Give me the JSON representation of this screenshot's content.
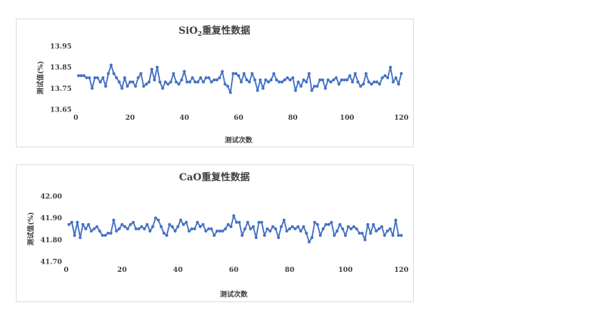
{
  "chart_data": [
    {
      "type": "line",
      "title_main": "SiO",
      "title_sub": "2",
      "title_rest": "重复性数据",
      "xlabel": "测试次数",
      "ylabel": "测试值(%)",
      "xlim": [
        0,
        120
      ],
      "ylim": [
        13.65,
        13.95
      ],
      "xticks": [
        "0",
        "20",
        "40",
        "60",
        "80",
        "100",
        "120"
      ],
      "yticks": [
        "13.65",
        "13.75",
        "13.85",
        "13.95"
      ],
      "color": "#4472c4",
      "x": [
        1,
        2,
        3,
        4,
        5,
        6,
        7,
        8,
        9,
        10,
        11,
        12,
        13,
        14,
        15,
        16,
        17,
        18,
        19,
        20,
        21,
        22,
        23,
        24,
        25,
        26,
        27,
        28,
        29,
        30,
        31,
        32,
        33,
        34,
        35,
        36,
        37,
        38,
        39,
        40,
        41,
        42,
        43,
        44,
        45,
        46,
        47,
        48,
        49,
        50,
        51,
        52,
        53,
        54,
        55,
        56,
        57,
        58,
        59,
        60,
        61,
        62,
        63,
        64,
        65,
        66,
        67,
        68,
        69,
        70,
        71,
        72,
        73,
        74,
        75,
        76,
        77,
        78,
        79,
        80,
        81,
        82,
        83,
        84,
        85,
        86,
        87,
        88,
        89,
        90,
        91,
        92,
        93,
        94,
        95,
        96,
        97,
        98,
        99,
        100,
        101,
        102,
        103,
        104,
        105,
        106,
        107,
        108,
        109,
        110,
        111,
        112,
        113,
        114,
        115,
        116,
        117,
        118,
        119,
        120
      ],
      "values": [
        13.81,
        13.81,
        13.81,
        13.8,
        13.8,
        13.75,
        13.8,
        13.8,
        13.78,
        13.8,
        13.76,
        13.82,
        13.86,
        13.82,
        13.8,
        13.78,
        13.75,
        13.8,
        13.76,
        13.78,
        13.78,
        13.76,
        13.8,
        13.82,
        13.76,
        13.77,
        13.78,
        13.84,
        13.79,
        13.85,
        13.78,
        13.75,
        13.78,
        13.77,
        13.78,
        13.82,
        13.78,
        13.77,
        13.79,
        13.83,
        13.78,
        13.78,
        13.8,
        13.78,
        13.78,
        13.8,
        13.78,
        13.8,
        13.8,
        13.78,
        13.79,
        13.79,
        13.8,
        13.83,
        13.77,
        13.76,
        13.73,
        13.82,
        13.82,
        13.81,
        13.78,
        13.82,
        13.79,
        13.78,
        13.82,
        13.79,
        13.74,
        13.79,
        13.75,
        13.79,
        13.78,
        13.79,
        13.82,
        13.79,
        13.78,
        13.78,
        13.79,
        13.8,
        13.79,
        13.8,
        13.74,
        13.78,
        13.76,
        13.79,
        13.78,
        13.82,
        13.74,
        13.76,
        13.76,
        13.79,
        13.79,
        13.75,
        13.79,
        13.78,
        13.79,
        13.8,
        13.77,
        13.79,
        13.79,
        13.79,
        13.81,
        13.78,
        13.82,
        13.78,
        13.76,
        13.77,
        13.82,
        13.78,
        13.77,
        13.78,
        13.78,
        13.77,
        13.8,
        13.81,
        13.8,
        13.85,
        13.78,
        13.8,
        13.77,
        13.82
      ]
    },
    {
      "type": "line",
      "title_main": "CaO重复性数据",
      "title_sub": "",
      "title_rest": "",
      "xlabel": "测试次数",
      "ylabel": "测试值(%)",
      "xlim": [
        0,
        120
      ],
      "ylim": [
        41.7,
        42.0
      ],
      "xticks": [
        "0",
        "20",
        "40",
        "60",
        "80",
        "100",
        "120"
      ],
      "yticks": [
        "41.70",
        "41.80",
        "41.90",
        "42.00"
      ],
      "color": "#4472c4",
      "x": [
        1,
        2,
        3,
        4,
        5,
        6,
        7,
        8,
        9,
        10,
        11,
        12,
        13,
        14,
        15,
        16,
        17,
        18,
        19,
        20,
        21,
        22,
        23,
        24,
        25,
        26,
        27,
        28,
        29,
        30,
        31,
        32,
        33,
        34,
        35,
        36,
        37,
        38,
        39,
        40,
        41,
        42,
        43,
        44,
        45,
        46,
        47,
        48,
        49,
        50,
        51,
        52,
        53,
        54,
        55,
        56,
        57,
        58,
        59,
        60,
        61,
        62,
        63,
        64,
        65,
        66,
        67,
        68,
        69,
        70,
        71,
        72,
        73,
        74,
        75,
        76,
        77,
        78,
        79,
        80,
        81,
        82,
        83,
        84,
        85,
        86,
        87,
        88,
        89,
        90,
        91,
        92,
        93,
        94,
        95,
        96,
        97,
        98,
        99,
        100,
        101,
        102,
        103,
        104,
        105,
        106,
        107,
        108,
        109,
        110,
        111,
        112,
        113,
        114,
        115,
        116,
        117,
        118,
        119,
        120
      ],
      "values": [
        41.87,
        41.88,
        41.82,
        41.88,
        41.81,
        41.87,
        41.85,
        41.87,
        41.84,
        41.85,
        41.86,
        41.84,
        41.82,
        41.82,
        41.83,
        41.83,
        41.89,
        41.84,
        41.85,
        41.87,
        41.86,
        41.85,
        41.87,
        41.88,
        41.85,
        41.85,
        41.86,
        41.85,
        41.87,
        41.84,
        41.86,
        41.9,
        41.89,
        41.86,
        41.83,
        41.82,
        41.87,
        41.86,
        41.84,
        41.86,
        41.89,
        41.87,
        41.88,
        41.84,
        41.85,
        41.85,
        41.88,
        41.86,
        41.87,
        41.84,
        41.85,
        41.85,
        41.82,
        41.84,
        41.84,
        41.84,
        41.85,
        41.87,
        41.86,
        41.91,
        41.88,
        41.88,
        41.82,
        41.85,
        41.88,
        41.85,
        41.86,
        41.81,
        41.88,
        41.88,
        41.82,
        41.85,
        41.84,
        41.86,
        41.85,
        41.81,
        41.86,
        41.89,
        41.84,
        41.85,
        41.86,
        41.85,
        41.86,
        41.84,
        41.86,
        41.83,
        41.79,
        41.81,
        41.88,
        41.87,
        41.82,
        41.85,
        41.87,
        41.87,
        41.88,
        41.82,
        41.84,
        41.87,
        41.85,
        41.82,
        41.86,
        41.85,
        41.86,
        41.85,
        41.83,
        41.83,
        41.8,
        41.87,
        41.83,
        41.87,
        41.84,
        41.85,
        41.86,
        41.82,
        41.84,
        41.85,
        41.82,
        41.89,
        41.82,
        41.82
      ]
    }
  ]
}
